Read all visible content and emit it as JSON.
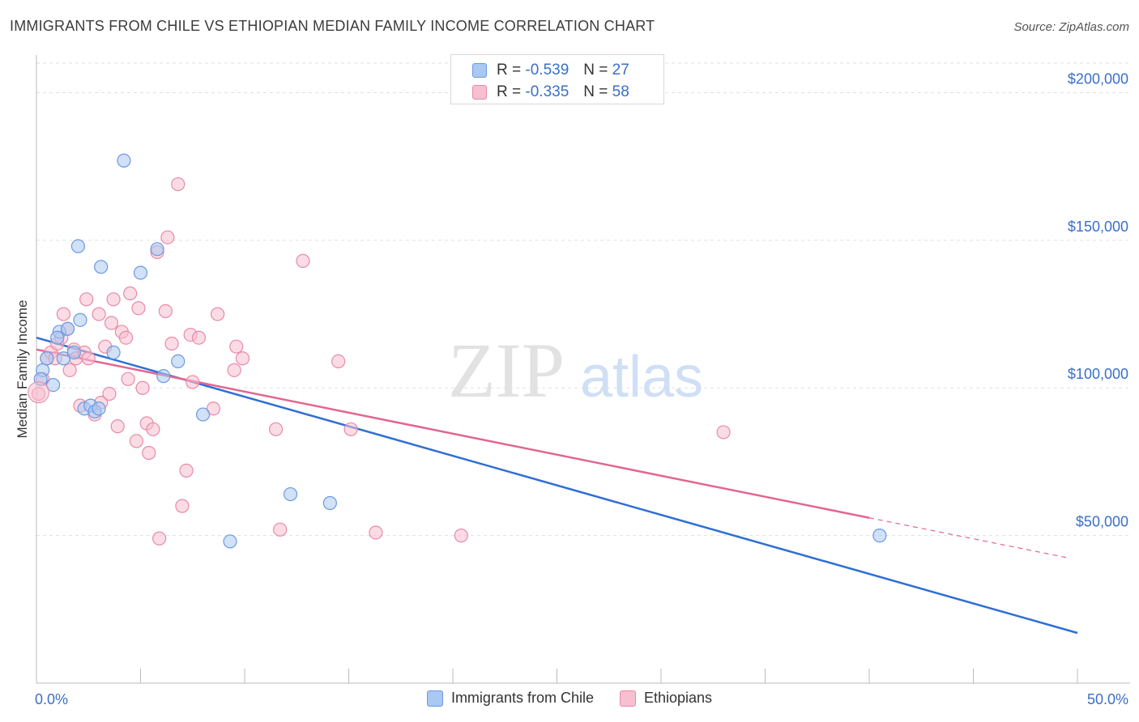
{
  "header": {
    "title": "IMMIGRANTS FROM CHILE VS ETHIOPIAN MEDIAN FAMILY INCOME CORRELATION CHART",
    "source": "Source: ZipAtlas.com"
  },
  "watermark": {
    "zip": "ZIP",
    "atlas": "atlas"
  },
  "legend_top": [
    {
      "r_label": "R =",
      "r_value": "-0.539",
      "n_label": "N =",
      "n_value": "27",
      "color": "#a9c8f2",
      "border": "#6b9ae0"
    },
    {
      "r_label": "R =",
      "r_value": "-0.335",
      "n_label": "N =",
      "n_value": "58",
      "color": "#f7bfd0",
      "border": "#e88aa8"
    }
  ],
  "legend_bottom": [
    {
      "label": "Immigrants from Chile",
      "color": "#a9c8f2",
      "border": "#6b9ae0"
    },
    {
      "label": "Ethiopians",
      "color": "#f7bfd0",
      "border": "#e88aa8"
    }
  ],
  "chart_data": {
    "type": "scatter",
    "title": "IMMIGRANTS FROM CHILE VS ETHIOPIAN MEDIAN FAMILY INCOME CORRELATION CHART",
    "xlabel": "",
    "ylabel": "Median Family Income",
    "xlim": [
      0,
      50
    ],
    "ylim": [
      0,
      210000
    ],
    "x_tick_labels": [
      "0.0%",
      "50.0%"
    ],
    "y_ticks": [
      50000,
      100000,
      150000,
      200000
    ],
    "y_tick_labels": [
      "$50,000",
      "$100,000",
      "$150,000",
      "$200,000"
    ],
    "grid": true,
    "legend_position": "top-center",
    "series": [
      {
        "name": "Immigrants from Chile",
        "color": "#6b9ae0",
        "fill": "#a9c8f2",
        "trend": {
          "x": [
            0,
            50
          ],
          "y": [
            117000,
            17000
          ],
          "color": "#2f6fd4"
        },
        "points": [
          {
            "x": 0.3,
            "y": 106000
          },
          {
            "x": 0.5,
            "y": 110000
          },
          {
            "x": 0.8,
            "y": 101000
          },
          {
            "x": 1.1,
            "y": 119000
          },
          {
            "x": 1.0,
            "y": 117000
          },
          {
            "x": 1.3,
            "y": 110000
          },
          {
            "x": 1.5,
            "y": 120000
          },
          {
            "x": 1.8,
            "y": 112000
          },
          {
            "x": 2.0,
            "y": 148000
          },
          {
            "x": 2.1,
            "y": 123000
          },
          {
            "x": 2.3,
            "y": 93000
          },
          {
            "x": 2.6,
            "y": 94000
          },
          {
            "x": 2.8,
            "y": 92000
          },
          {
            "x": 3.0,
            "y": 93000
          },
          {
            "x": 3.1,
            "y": 141000
          },
          {
            "x": 3.7,
            "y": 112000
          },
          {
            "x": 4.2,
            "y": 177000
          },
          {
            "x": 5.0,
            "y": 139000
          },
          {
            "x": 5.8,
            "y": 147000
          },
          {
            "x": 6.1,
            "y": 104000
          },
          {
            "x": 6.8,
            "y": 109000
          },
          {
            "x": 8.0,
            "y": 91000
          },
          {
            "x": 9.3,
            "y": 48000
          },
          {
            "x": 12.2,
            "y": 64000
          },
          {
            "x": 14.1,
            "y": 61000
          },
          {
            "x": 40.5,
            "y": 50000
          },
          {
            "x": 0.2,
            "y": 103000
          }
        ]
      },
      {
        "name": "Ethiopians",
        "color": "#e88aa8",
        "fill": "#f7bfd0",
        "trend": {
          "x": [
            0,
            40
          ],
          "y": [
            113000,
            56000
          ],
          "color": "#e2668f"
        },
        "trend_ext": {
          "x": [
            40,
            49.5
          ],
          "y": [
            56000,
            42500
          ]
        },
        "points": [
          {
            "x": 0.1,
            "y": 98000
          },
          {
            "x": 0.3,
            "y": 103000
          },
          {
            "x": 0.5,
            "y": 110000
          },
          {
            "x": 0.7,
            "y": 112000
          },
          {
            "x": 0.9,
            "y": 110000
          },
          {
            "x": 1.0,
            "y": 115000
          },
          {
            "x": 1.2,
            "y": 117000
          },
          {
            "x": 1.3,
            "y": 125000
          },
          {
            "x": 1.5,
            "y": 120000
          },
          {
            "x": 1.6,
            "y": 106000
          },
          {
            "x": 1.8,
            "y": 113000
          },
          {
            "x": 1.9,
            "y": 110000
          },
          {
            "x": 2.1,
            "y": 94000
          },
          {
            "x": 2.3,
            "y": 112000
          },
          {
            "x": 2.4,
            "y": 130000
          },
          {
            "x": 2.5,
            "y": 110000
          },
          {
            "x": 2.8,
            "y": 91000
          },
          {
            "x": 3.0,
            "y": 125000
          },
          {
            "x": 3.1,
            "y": 95000
          },
          {
            "x": 3.3,
            "y": 114000
          },
          {
            "x": 3.5,
            "y": 98000
          },
          {
            "x": 3.6,
            "y": 122000
          },
          {
            "x": 3.7,
            "y": 130000
          },
          {
            "x": 3.9,
            "y": 87000
          },
          {
            "x": 4.1,
            "y": 119000
          },
          {
            "x": 4.3,
            "y": 117000
          },
          {
            "x": 4.4,
            "y": 103000
          },
          {
            "x": 4.5,
            "y": 132000
          },
          {
            "x": 4.8,
            "y": 82000
          },
          {
            "x": 4.9,
            "y": 127000
          },
          {
            "x": 5.1,
            "y": 100000
          },
          {
            "x": 5.3,
            "y": 88000
          },
          {
            "x": 5.4,
            "y": 78000
          },
          {
            "x": 5.6,
            "y": 86000
          },
          {
            "x": 5.8,
            "y": 146000
          },
          {
            "x": 5.9,
            "y": 49000
          },
          {
            "x": 6.2,
            "y": 126000
          },
          {
            "x": 6.3,
            "y": 151000
          },
          {
            "x": 6.5,
            "y": 115000
          },
          {
            "x": 6.8,
            "y": 169000
          },
          {
            "x": 7.0,
            "y": 60000
          },
          {
            "x": 7.2,
            "y": 72000
          },
          {
            "x": 7.4,
            "y": 118000
          },
          {
            "x": 7.5,
            "y": 102000
          },
          {
            "x": 7.8,
            "y": 117000
          },
          {
            "x": 8.5,
            "y": 93000
          },
          {
            "x": 8.7,
            "y": 125000
          },
          {
            "x": 9.5,
            "y": 106000
          },
          {
            "x": 9.6,
            "y": 114000
          },
          {
            "x": 9.9,
            "y": 110000
          },
          {
            "x": 11.5,
            "y": 86000
          },
          {
            "x": 11.7,
            "y": 52000
          },
          {
            "x": 12.8,
            "y": 143000
          },
          {
            "x": 14.5,
            "y": 109000
          },
          {
            "x": 15.1,
            "y": 86000
          },
          {
            "x": 16.3,
            "y": 51000
          },
          {
            "x": 20.4,
            "y": 50000
          },
          {
            "x": 33.0,
            "y": 85000
          }
        ]
      }
    ]
  }
}
